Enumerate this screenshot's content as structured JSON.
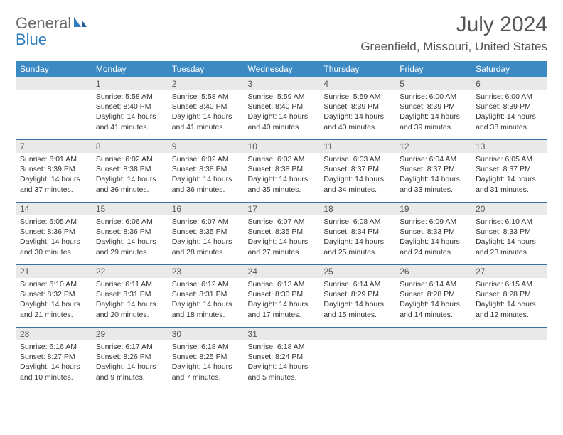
{
  "brand": {
    "part1": "General",
    "part2": "Blue"
  },
  "title": "July 2024",
  "location": "Greenfield, Missouri, United States",
  "colors": {
    "header_bg": "#3b8ac4",
    "header_text": "#ffffff",
    "daynum_bg": "#e9e9e9",
    "row_border": "#3b6fa0",
    "brand_blue": "#2f7bc0",
    "brand_grey": "#6b6b6b",
    "body_text": "#333333"
  },
  "weekdays": [
    "Sunday",
    "Monday",
    "Tuesday",
    "Wednesday",
    "Thursday",
    "Friday",
    "Saturday"
  ],
  "weeks": [
    [
      {
        "blank": true
      },
      {
        "n": "1",
        "sr": "5:58 AM",
        "ss": "8:40 PM",
        "dl": "14 hours and 41 minutes."
      },
      {
        "n": "2",
        "sr": "5:58 AM",
        "ss": "8:40 PM",
        "dl": "14 hours and 41 minutes."
      },
      {
        "n": "3",
        "sr": "5:59 AM",
        "ss": "8:40 PM",
        "dl": "14 hours and 40 minutes."
      },
      {
        "n": "4",
        "sr": "5:59 AM",
        "ss": "8:39 PM",
        "dl": "14 hours and 40 minutes."
      },
      {
        "n": "5",
        "sr": "6:00 AM",
        "ss": "8:39 PM",
        "dl": "14 hours and 39 minutes."
      },
      {
        "n": "6",
        "sr": "6:00 AM",
        "ss": "8:39 PM",
        "dl": "14 hours and 38 minutes."
      }
    ],
    [
      {
        "n": "7",
        "sr": "6:01 AM",
        "ss": "8:39 PM",
        "dl": "14 hours and 37 minutes."
      },
      {
        "n": "8",
        "sr": "6:02 AM",
        "ss": "8:38 PM",
        "dl": "14 hours and 36 minutes."
      },
      {
        "n": "9",
        "sr": "6:02 AM",
        "ss": "8:38 PM",
        "dl": "14 hours and 36 minutes."
      },
      {
        "n": "10",
        "sr": "6:03 AM",
        "ss": "8:38 PM",
        "dl": "14 hours and 35 minutes."
      },
      {
        "n": "11",
        "sr": "6:03 AM",
        "ss": "8:37 PM",
        "dl": "14 hours and 34 minutes."
      },
      {
        "n": "12",
        "sr": "6:04 AM",
        "ss": "8:37 PM",
        "dl": "14 hours and 33 minutes."
      },
      {
        "n": "13",
        "sr": "6:05 AM",
        "ss": "8:37 PM",
        "dl": "14 hours and 31 minutes."
      }
    ],
    [
      {
        "n": "14",
        "sr": "6:05 AM",
        "ss": "8:36 PM",
        "dl": "14 hours and 30 minutes."
      },
      {
        "n": "15",
        "sr": "6:06 AM",
        "ss": "8:36 PM",
        "dl": "14 hours and 29 minutes."
      },
      {
        "n": "16",
        "sr": "6:07 AM",
        "ss": "8:35 PM",
        "dl": "14 hours and 28 minutes."
      },
      {
        "n": "17",
        "sr": "6:07 AM",
        "ss": "8:35 PM",
        "dl": "14 hours and 27 minutes."
      },
      {
        "n": "18",
        "sr": "6:08 AM",
        "ss": "8:34 PM",
        "dl": "14 hours and 25 minutes."
      },
      {
        "n": "19",
        "sr": "6:09 AM",
        "ss": "8:33 PM",
        "dl": "14 hours and 24 minutes."
      },
      {
        "n": "20",
        "sr": "6:10 AM",
        "ss": "8:33 PM",
        "dl": "14 hours and 23 minutes."
      }
    ],
    [
      {
        "n": "21",
        "sr": "6:10 AM",
        "ss": "8:32 PM",
        "dl": "14 hours and 21 minutes."
      },
      {
        "n": "22",
        "sr": "6:11 AM",
        "ss": "8:31 PM",
        "dl": "14 hours and 20 minutes."
      },
      {
        "n": "23",
        "sr": "6:12 AM",
        "ss": "8:31 PM",
        "dl": "14 hours and 18 minutes."
      },
      {
        "n": "24",
        "sr": "6:13 AM",
        "ss": "8:30 PM",
        "dl": "14 hours and 17 minutes."
      },
      {
        "n": "25",
        "sr": "6:14 AM",
        "ss": "8:29 PM",
        "dl": "14 hours and 15 minutes."
      },
      {
        "n": "26",
        "sr": "6:14 AM",
        "ss": "8:28 PM",
        "dl": "14 hours and 14 minutes."
      },
      {
        "n": "27",
        "sr": "6:15 AM",
        "ss": "8:28 PM",
        "dl": "14 hours and 12 minutes."
      }
    ],
    [
      {
        "n": "28",
        "sr": "6:16 AM",
        "ss": "8:27 PM",
        "dl": "14 hours and 10 minutes."
      },
      {
        "n": "29",
        "sr": "6:17 AM",
        "ss": "8:26 PM",
        "dl": "14 hours and 9 minutes."
      },
      {
        "n": "30",
        "sr": "6:18 AM",
        "ss": "8:25 PM",
        "dl": "14 hours and 7 minutes."
      },
      {
        "n": "31",
        "sr": "6:18 AM",
        "ss": "8:24 PM",
        "dl": "14 hours and 5 minutes."
      },
      {
        "blank": true
      },
      {
        "blank": true
      },
      {
        "blank": true
      }
    ]
  ],
  "labels": {
    "sunrise": "Sunrise:",
    "sunset": "Sunset:",
    "daylight": "Daylight:"
  }
}
